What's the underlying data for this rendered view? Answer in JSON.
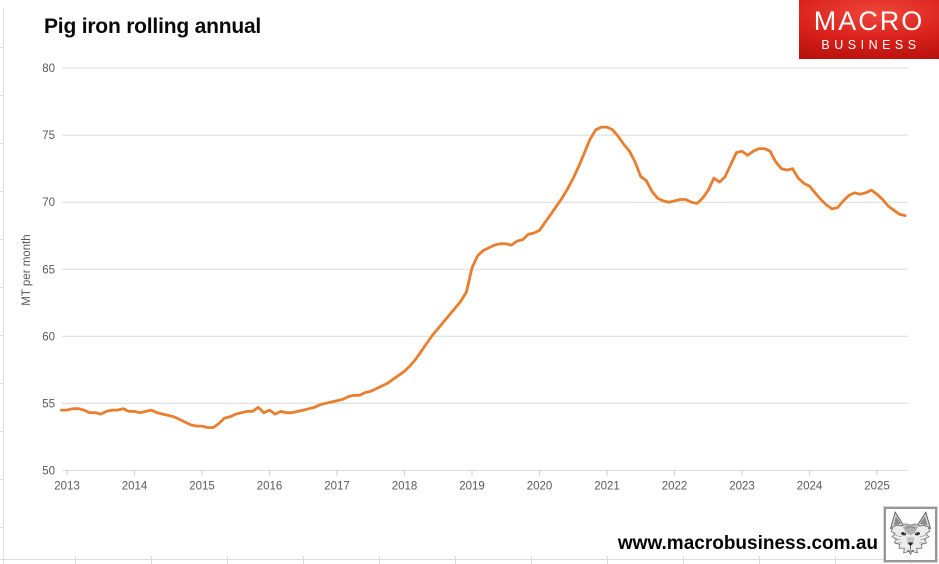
{
  "title": "Pig iron rolling annual",
  "logo": {
    "line1": "MACRO",
    "line2": "BUSINESS"
  },
  "watermark": "www.macrobusiness.com.au",
  "colors": {
    "line": "#E87E2E",
    "grid": "#D9D9D9",
    "tick": "#C9C9C9",
    "axis_text": "#595959",
    "logo_red_light": "#EF463A",
    "logo_red_dark": "#AE0D09"
  },
  "chart_data": {
    "type": "line",
    "title": "Pig iron rolling annual",
    "xlabel": "",
    "ylabel": "MT per month",
    "ylim": [
      50,
      80
    ],
    "yticks": [
      50,
      55,
      60,
      65,
      70,
      75,
      80
    ],
    "xticks": [
      2013,
      2014,
      2015,
      2016,
      2017,
      2018,
      2019,
      2020,
      2021,
      2022,
      2023,
      2024,
      2025
    ],
    "grid": "horizontal-only",
    "legend": "none",
    "series": [
      {
        "name": "Pig iron rolling annual",
        "color": "#E87E2E",
        "start": "2012-12",
        "frequency": "monthly",
        "values": [
          54.5,
          54.5,
          54.6,
          54.6,
          54.5,
          54.3,
          54.3,
          54.2,
          54.4,
          54.5,
          54.5,
          54.6,
          54.4,
          54.4,
          54.3,
          54.4,
          54.5,
          54.3,
          54.2,
          54.1,
          54.0,
          53.8,
          53.6,
          53.4,
          53.3,
          53.3,
          53.2,
          53.2,
          53.5,
          53.9,
          54.0,
          54.2,
          54.3,
          54.4,
          54.4,
          54.7,
          54.3,
          54.5,
          54.2,
          54.4,
          54.3,
          54.3,
          54.4,
          54.5,
          54.6,
          54.7,
          54.9,
          55.0,
          55.1,
          55.2,
          55.3,
          55.5,
          55.6,
          55.6,
          55.8,
          55.9,
          56.1,
          56.3,
          56.5,
          56.8,
          57.1,
          57.4,
          57.8,
          58.3,
          58.9,
          59.5,
          60.1,
          60.6,
          61.1,
          61.6,
          62.1,
          62.6,
          63.3,
          65.1,
          66.0,
          66.4,
          66.6,
          66.8,
          66.9,
          66.9,
          66.8,
          67.1,
          67.2,
          67.6,
          67.7,
          67.9,
          68.5,
          69.1,
          69.7,
          70.3,
          71.0,
          71.8,
          72.7,
          73.7,
          74.7,
          75.4,
          75.6,
          75.6,
          75.4,
          74.9,
          74.3,
          73.8,
          73.0,
          71.9,
          71.6,
          70.8,
          70.3,
          70.1,
          70.0,
          70.1,
          70.2,
          70.2,
          70.0,
          69.9,
          70.3,
          70.9,
          71.8,
          71.5,
          71.9,
          72.8,
          73.7,
          73.8,
          73.5,
          73.8,
          74.0,
          74.0,
          73.8,
          73.0,
          72.5,
          72.4,
          72.5,
          71.8,
          71.4,
          71.2,
          70.7,
          70.2,
          69.8,
          69.5,
          69.6,
          70.1,
          70.5,
          70.7,
          70.6,
          70.7,
          70.9,
          70.6,
          70.2,
          69.7,
          69.4,
          69.1,
          69.0
        ]
      }
    ]
  }
}
